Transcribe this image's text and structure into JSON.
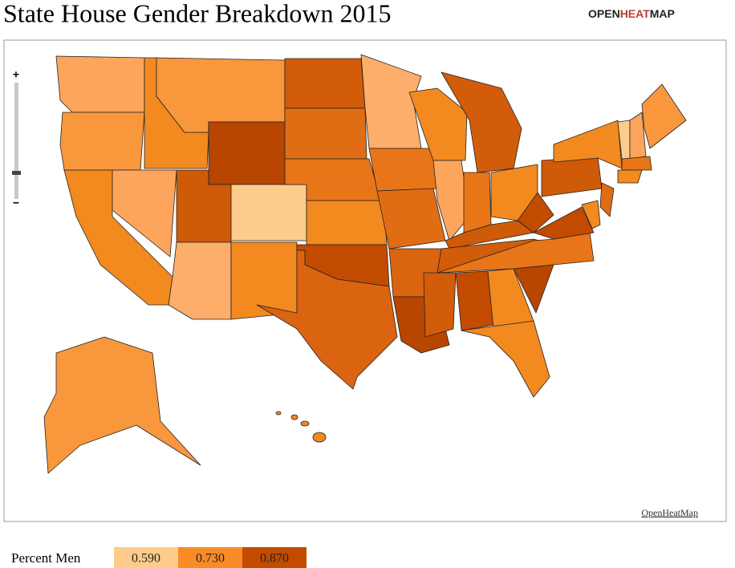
{
  "header": {
    "title": "State House Gender Breakdown 2015",
    "logo": {
      "part1": "OPEN",
      "part2": "HEAT",
      "part3": "MAP"
    }
  },
  "map": {
    "zoom_in": "+",
    "zoom_out": "−",
    "attribution": "OpenHeatMap"
  },
  "legend": {
    "title": "Percent Men",
    "stops": [
      {
        "value": 0.59,
        "label": "0.590",
        "color": "#fdcc8a"
      },
      {
        "value": 0.73,
        "label": "0.730",
        "color": "#f98b26"
      },
      {
        "value": 0.87,
        "label": "0.870",
        "color": "#c24b00"
      }
    ]
  }
}
